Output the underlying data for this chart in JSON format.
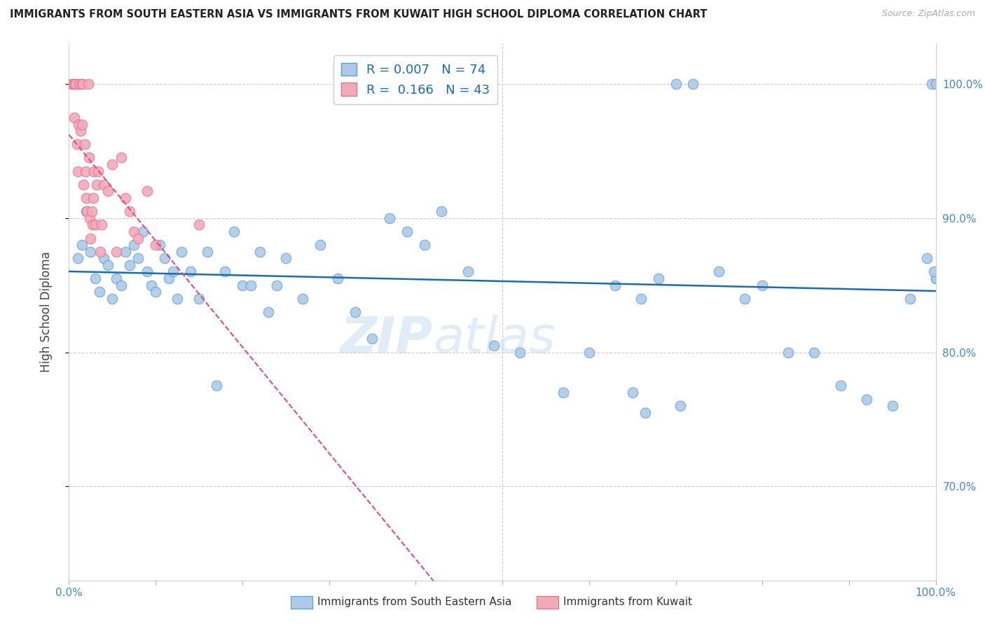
{
  "title": "IMMIGRANTS FROM SOUTH EASTERN ASIA VS IMMIGRANTS FROM KUWAIT HIGH SCHOOL DIPLOMA CORRELATION CHART",
  "source": "Source: ZipAtlas.com",
  "ylabel": "High School Diploma",
  "legend_blue_label": "Immigrants from South Eastern Asia",
  "legend_pink_label": "Immigrants from Kuwait",
  "R_blue": "0.007",
  "N_blue": "74",
  "R_pink": "0.166",
  "N_pink": "43",
  "blue_color": "#adc9e8",
  "pink_color": "#f2aab8",
  "blue_edge_color": "#5a9fd4",
  "pink_edge_color": "#e07090",
  "blue_line_color": "#1a6bb5",
  "pink_line_color": "#e05070",
  "watermark_color": "#c8ddf0",
  "blue_scatter_x": [
    1.0,
    1.5,
    2.0,
    2.5,
    3.0,
    3.5,
    4.0,
    4.5,
    5.0,
    5.5,
    6.0,
    6.5,
    7.0,
    7.5,
    8.0,
    8.5,
    9.0,
    9.5,
    10.0,
    10.5,
    11.0,
    11.5,
    12.0,
    12.5,
    13.0,
    14.0,
    15.0,
    16.0,
    17.0,
    18.0,
    19.0,
    20.0,
    21.0,
    22.0,
    23.0,
    24.0,
    25.0,
    27.0,
    29.0,
    31.0,
    33.0,
    35.0,
    37.0,
    39.0,
    41.0,
    43.0,
    46.0,
    49.0,
    52.0,
    57.0,
    60.0,
    63.0,
    66.0,
    68.0,
    70.0,
    72.0,
    75.0,
    78.0,
    80.0,
    83.0,
    86.0,
    89.0,
    92.0,
    95.0,
    97.0,
    99.0,
    99.5,
    100.0,
    65.0,
    70.5,
    66.5,
    100.0,
    99.8,
    100.0
  ],
  "blue_scatter_y": [
    87.0,
    88.0,
    90.5,
    87.5,
    85.5,
    84.5,
    87.0,
    86.5,
    84.0,
    85.5,
    85.0,
    87.5,
    86.5,
    88.0,
    87.0,
    89.0,
    86.0,
    85.0,
    84.5,
    88.0,
    87.0,
    85.5,
    86.0,
    84.0,
    87.5,
    86.0,
    84.0,
    87.5,
    77.5,
    86.0,
    89.0,
    85.0,
    85.0,
    87.5,
    83.0,
    85.0,
    87.0,
    84.0,
    88.0,
    85.5,
    83.0,
    81.0,
    90.0,
    89.0,
    88.0,
    90.5,
    86.0,
    80.5,
    80.0,
    77.0,
    80.0,
    85.0,
    84.0,
    85.5,
    100.0,
    100.0,
    86.0,
    84.0,
    85.0,
    80.0,
    80.0,
    77.5,
    76.5,
    76.0,
    84.0,
    87.0,
    100.0,
    85.5,
    77.0,
    76.0,
    75.5,
    85.5,
    86.0,
    100.0
  ],
  "pink_scatter_x": [
    0.3,
    0.5,
    0.6,
    0.7,
    0.8,
    0.9,
    1.0,
    1.1,
    1.2,
    1.3,
    1.4,
    1.5,
    1.6,
    1.7,
    1.8,
    1.9,
    2.0,
    2.1,
    2.2,
    2.3,
    2.4,
    2.5,
    2.6,
    2.7,
    2.8,
    2.9,
    3.0,
    3.2,
    3.4,
    3.6,
    3.8,
    4.0,
    4.5,
    5.0,
    5.5,
    6.0,
    6.5,
    7.0,
    7.5,
    8.0,
    9.0,
    10.0,
    15.0
  ],
  "pink_scatter_y": [
    100.0,
    100.0,
    97.5,
    100.0,
    100.0,
    95.5,
    93.5,
    97.0,
    100.0,
    96.5,
    100.0,
    97.0,
    100.0,
    92.5,
    95.5,
    93.5,
    91.5,
    90.5,
    100.0,
    94.5,
    90.0,
    88.5,
    90.5,
    89.5,
    91.5,
    93.5,
    89.5,
    92.5,
    93.5,
    87.5,
    89.5,
    92.5,
    92.0,
    94.0,
    87.5,
    94.5,
    91.5,
    90.5,
    89.0,
    88.5,
    92.0,
    88.0,
    89.5
  ],
  "xlim": [
    0,
    100
  ],
  "ylim": [
    63,
    103
  ],
  "yticks": [
    70,
    80,
    90,
    100
  ],
  "xticks": [
    0,
    10,
    20,
    30,
    40,
    50,
    60,
    70,
    80,
    90,
    100
  ]
}
